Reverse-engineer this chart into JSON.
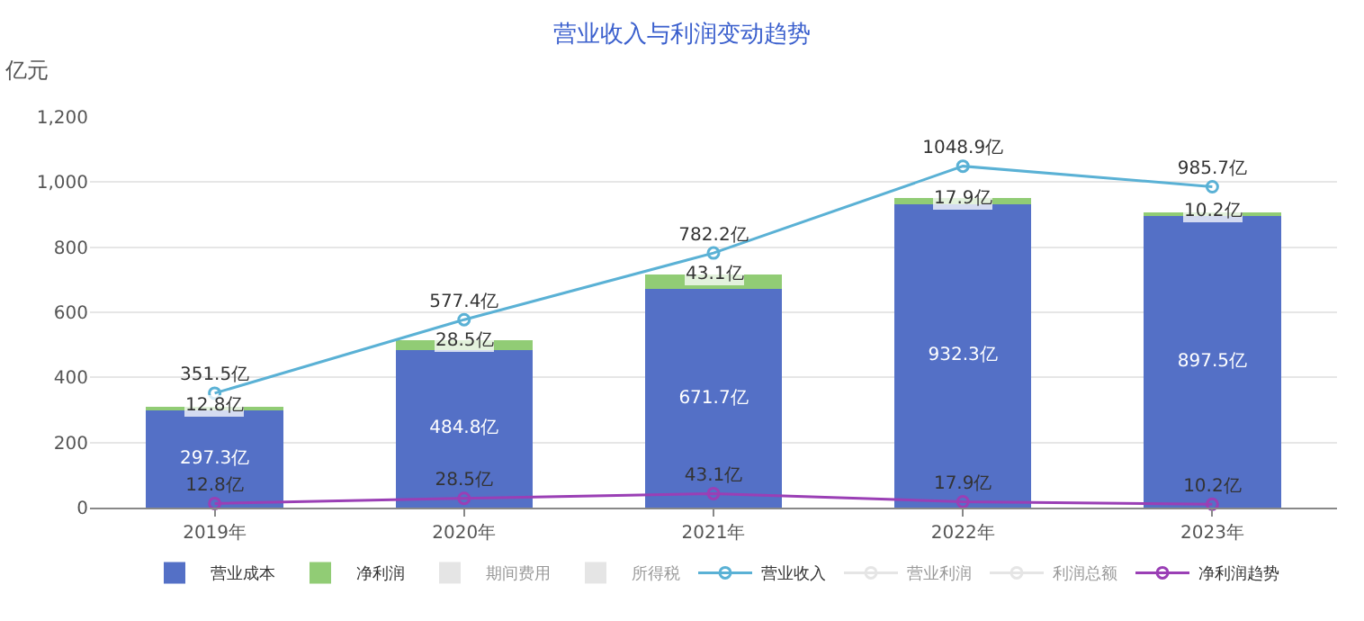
{
  "chart_data": {
    "type": "bar",
    "title": "营业收入与利润变动趋势",
    "ylabel": "亿元",
    "stacked": true,
    "categories": [
      "2019年",
      "2020年",
      "2021年",
      "2022年",
      "2023年"
    ],
    "series": [
      {
        "name": "营业成本",
        "color": "#5470c6",
        "values": [
          297.3,
          484.8,
          671.7,
          932.3,
          897.5
        ],
        "value_labels": [
          "297.3亿",
          "484.8亿",
          "671.7亿",
          "932.3亿",
          "897.5亿"
        ]
      },
      {
        "name": "净利润",
        "color": "#91cc75",
        "values": [
          12.8,
          28.5,
          43.1,
          17.9,
          10.2
        ],
        "value_labels": [
          "12.8亿",
          "28.5亿",
          "43.1亿",
          "17.9亿",
          "10.2亿"
        ]
      },
      {
        "name": "期间费用",
        "color": "#cccccc",
        "values": [
          null,
          null,
          null,
          null,
          null
        ]
      },
      {
        "name": "所得税",
        "color": "#cccccc",
        "values": [
          null,
          null,
          null,
          null,
          null
        ]
      },
      {
        "name": "营业收入",
        "type": "line",
        "color": "#5ab1d5",
        "marker": "circle",
        "values": [
          351.5,
          577.4,
          782.2,
          1048.9,
          985.7
        ],
        "value_labels": [
          "351.5亿",
          "577.4亿",
          "782.2亿",
          "1048.9亿",
          "985.7亿"
        ]
      },
      {
        "name": "营业利润",
        "type": "line",
        "color": "#cccccc",
        "marker": "circle",
        "values": [
          null,
          null,
          null,
          null,
          null
        ]
      },
      {
        "name": "利润总额",
        "type": "line",
        "color": "#cccccc",
        "marker": "circle",
        "values": [
          null,
          null,
          null,
          null,
          null
        ]
      },
      {
        "name": "净利润趋势",
        "type": "line",
        "color": "#9a3fb5",
        "marker": "circle",
        "values": [
          12.8,
          28.5,
          43.1,
          17.9,
          10.2
        ],
        "value_labels": [
          "12.8亿",
          "28.5亿",
          "43.1亿",
          "17.9亿",
          "10.2亿"
        ]
      }
    ],
    "ylim": [
      0,
      1200
    ],
    "yticks": [
      0,
      200,
      400,
      600,
      800,
      {
        "value": 1000,
        "label": "1,000"
      },
      {
        "value": 1200,
        "label": "1,200"
      }
    ],
    "grid": "y",
    "legend": "bottom"
  }
}
